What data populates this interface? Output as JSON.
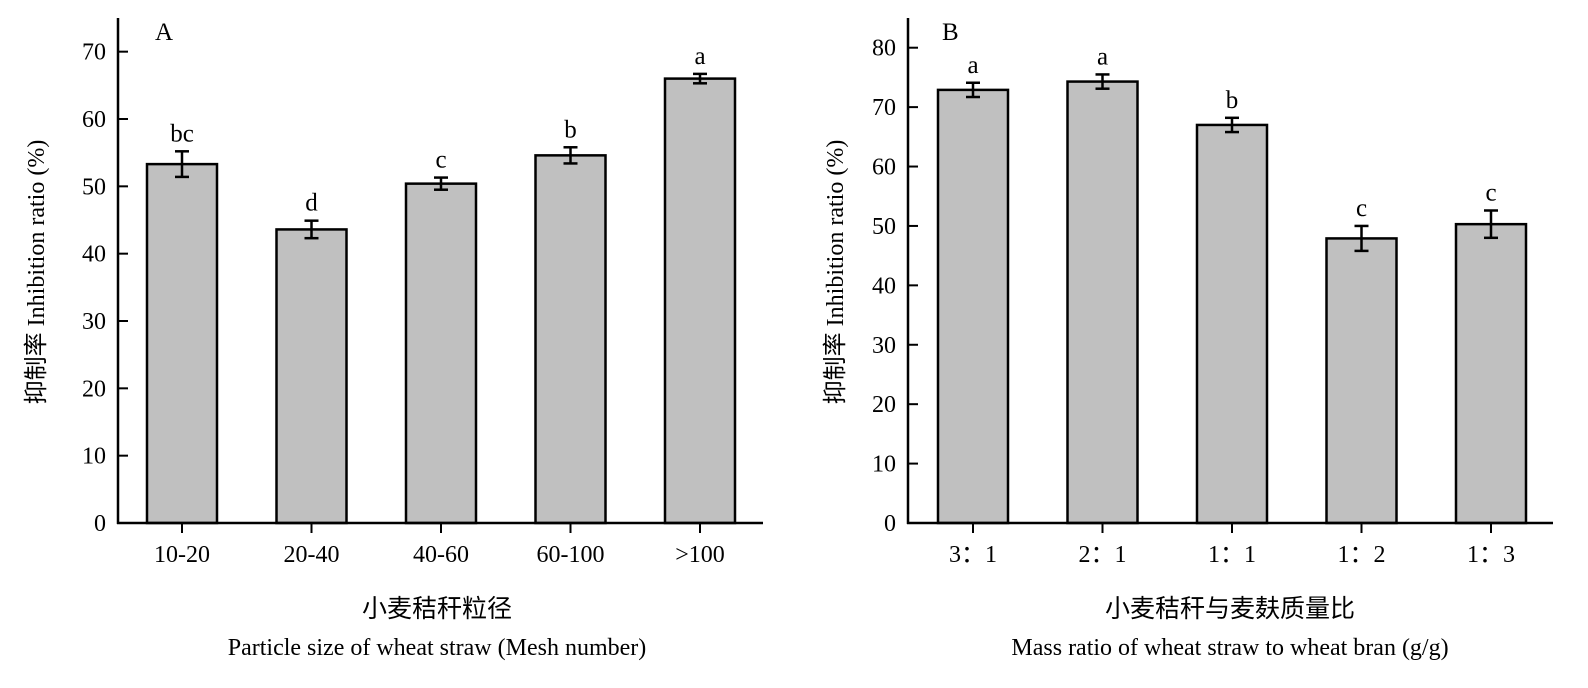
{
  "chart_data": [
    {
      "type": "bar",
      "panel_label": "A",
      "categories": [
        "10-20",
        "20-40",
        "40-60",
        "60-100",
        ">100"
      ],
      "values": [
        53.3,
        43.6,
        50.4,
        54.6,
        66.0
      ],
      "errors": [
        1.9,
        1.3,
        0.9,
        1.2,
        0.7
      ],
      "significance": [
        "bc",
        "d",
        "c",
        "b",
        "a"
      ],
      "ylabel": "抑制率 Inhibition ratio (%)",
      "xlabel_cn": "小麦秸秆粒径",
      "xlabel_en": "Particle size of wheat straw (Mesh number)",
      "ylim": [
        0,
        75
      ],
      "yticks": [
        0,
        10,
        20,
        30,
        40,
        50,
        60,
        70
      ],
      "bar_color": "#c0c0c0",
      "grid": false
    },
    {
      "type": "bar",
      "panel_label": "B",
      "categories": [
        "3：1",
        "2：1",
        "1：1",
        "1：2",
        "1：3"
      ],
      "values": [
        72.9,
        74.3,
        67.0,
        47.9,
        50.3
      ],
      "errors": [
        1.2,
        1.2,
        1.2,
        2.1,
        2.3
      ],
      "significance": [
        "a",
        "a",
        "b",
        "c",
        "c"
      ],
      "ylabel": "抑制率 Inhibition ratio (%)",
      "xlabel_cn": "小麦秸秆与麦麸质量比",
      "xlabel_en": "Mass ratio of wheat straw to wheat bran (g/g)",
      "ylim": [
        0,
        85
      ],
      "yticks": [
        0,
        10,
        20,
        30,
        40,
        50,
        60,
        70,
        80
      ],
      "bar_color": "#c0c0c0",
      "grid": false
    }
  ]
}
